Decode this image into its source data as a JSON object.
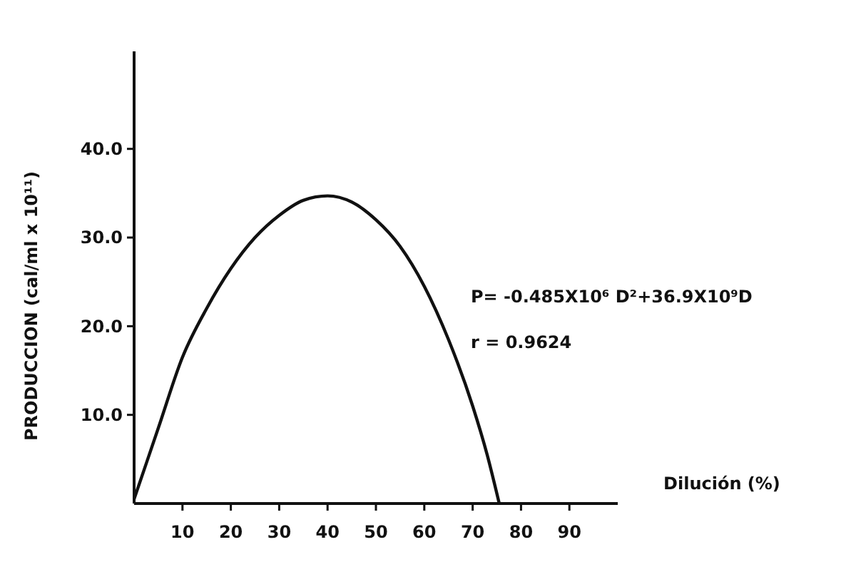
{
  "chart_data": {
    "type": "line",
    "xlabel": "Dilución (%)",
    "ylabel": "PRODUCCION  (cal/ml x 10¹¹)",
    "annotations": [
      "P= -0.485X10⁶ D²+36.9X10⁹D",
      "r = 0.9624"
    ],
    "x": [
      0,
      5,
      10,
      15,
      20,
      25,
      30,
      35,
      40,
      45,
      50,
      55,
      60,
      65,
      70,
      73,
      75.5
    ],
    "series": [
      {
        "color": "#111111",
        "values": [
          0.5,
          8.5,
          16.5,
          22,
          26.5,
          30,
          32.5,
          34.2,
          34.7,
          34,
          32,
          29,
          24.5,
          18.5,
          11,
          5.5,
          0
        ]
      }
    ],
    "xlim": [
      0,
      100
    ],
    "xticks": [
      10,
      20,
      30,
      40,
      50,
      60,
      70,
      80,
      90
    ],
    "ylim": [
      0,
      51
    ],
    "yticks": [
      {
        "value": 10,
        "label": "10.0"
      },
      {
        "value": 20,
        "label": "20.0"
      },
      {
        "value": 30,
        "label": "30.0"
      },
      {
        "value": 40,
        "label": "40.0"
      }
    ],
    "grid": false,
    "marker": "none",
    "line_style": "solid"
  }
}
